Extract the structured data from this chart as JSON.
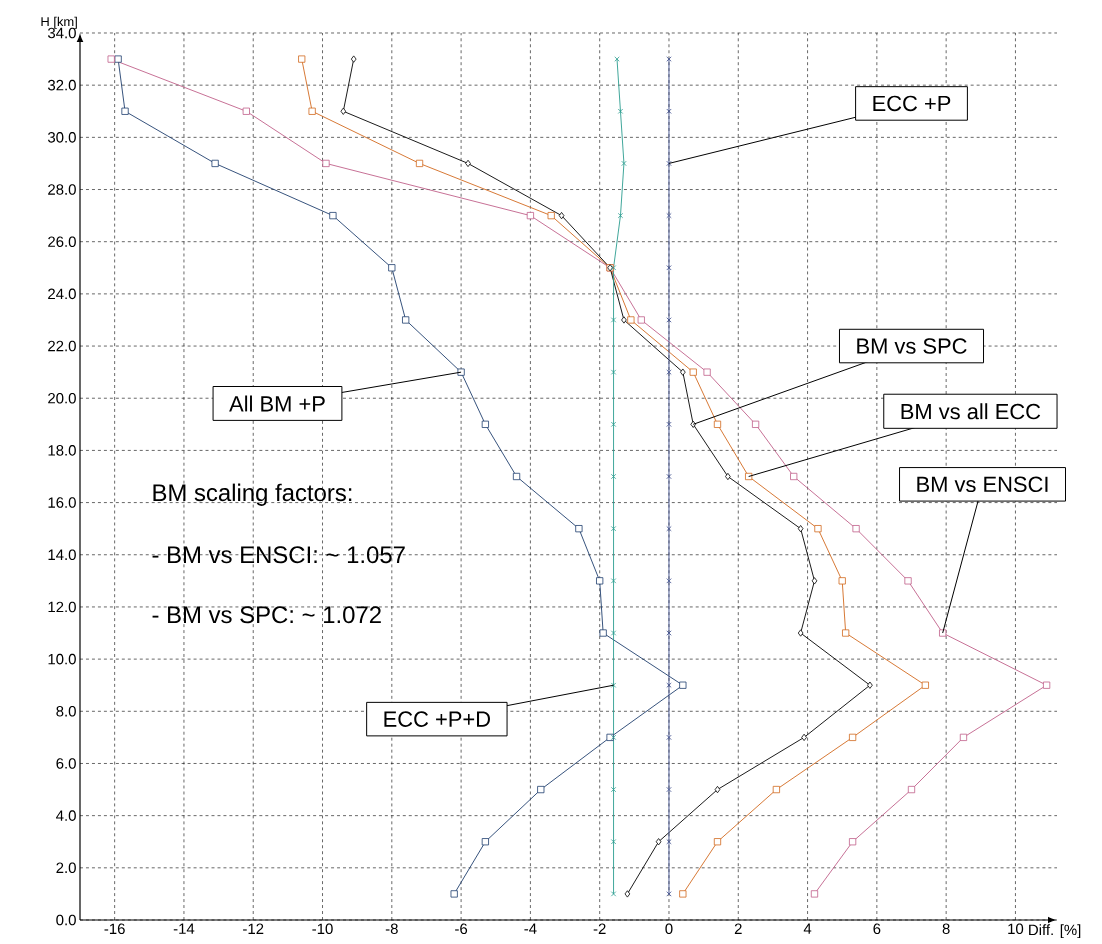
{
  "chart_data": {
    "type": "line",
    "xlabel": "Diff. [%]",
    "ylabel": "H [km]",
    "xlim": [
      -17,
      11.2
    ],
    "ylim": [
      0,
      34
    ],
    "xticks": [
      -16,
      -14,
      -12,
      -10,
      -8,
      -6,
      -4,
      -2,
      0,
      2,
      4,
      6,
      8,
      10
    ],
    "yticks": [
      {
        "value": 0,
        "label": "0.0"
      },
      {
        "value": 2,
        "label": "2.0"
      },
      {
        "value": 4,
        "label": "4.0"
      },
      {
        "value": 6,
        "label": "6.0"
      },
      {
        "value": 8,
        "label": "8.0"
      },
      {
        "value": 10,
        "label": "10.0"
      },
      {
        "value": 12,
        "label": "12.0"
      },
      {
        "value": 14,
        "label": "14.0"
      },
      {
        "value": 16,
        "label": "16.0"
      },
      {
        "value": 18,
        "label": "18.0"
      },
      {
        "value": 20,
        "label": "20.0"
      },
      {
        "value": 22,
        "label": "22.0"
      },
      {
        "value": 24,
        "label": "24.0"
      },
      {
        "value": 26,
        "label": "26.0"
      },
      {
        "value": 28,
        "label": "28.0"
      },
      {
        "value": 30,
        "label": "30.0"
      },
      {
        "value": 32,
        "label": "32.0"
      },
      {
        "value": 34,
        "label": "34.0"
      }
    ],
    "grid": true,
    "series": [
      {
        "name": "All BM +P",
        "color": "#1f3f6e",
        "marker": "square",
        "x": [
          -6.2,
          -5.3,
          -3.7,
          -1.7,
          0.4,
          -1.9,
          -2.0,
          -2.6,
          -4.4,
          -5.3,
          -6.0,
          -7.6,
          -8.0,
          -9.7,
          -13.1,
          -15.7,
          -15.9
        ],
        "values": [
          1,
          3,
          5,
          7,
          9,
          11,
          13,
          15,
          17,
          19,
          21,
          23,
          25,
          27,
          29,
          31,
          33
        ]
      },
      {
        "name": "BM vs ENSCI",
        "color": "#c0608a",
        "marker": "square",
        "x": [
          4.2,
          5.3,
          7.0,
          8.5,
          10.9,
          7.9,
          6.9,
          5.4,
          3.6,
          2.5,
          1.1,
          -0.8,
          -1.7,
          -4.0,
          -9.9,
          -12.2,
          -16.1
        ],
        "values": [
          1,
          3,
          5,
          7,
          9,
          11,
          13,
          15,
          17,
          19,
          21,
          23,
          25,
          27,
          29,
          31,
          33
        ]
      },
      {
        "name": "BM vs all ECC",
        "color": "#d2691e",
        "marker": "square",
        "x": [
          0.4,
          1.4,
          3.1,
          5.3,
          7.4,
          5.1,
          5.0,
          4.3,
          2.3,
          1.4,
          0.7,
          -1.1,
          -1.7,
          -3.4,
          -7.2,
          -10.3,
          -10.6
        ],
        "values": [
          1,
          3,
          5,
          7,
          9,
          11,
          13,
          15,
          17,
          19,
          21,
          23,
          25,
          27,
          29,
          31,
          33
        ]
      },
      {
        "name": "BM vs SPC",
        "color": "#000000",
        "marker": "diamond",
        "x": [
          -1.2,
          -0.3,
          1.4,
          3.9,
          5.8,
          3.8,
          4.2,
          3.8,
          1.7,
          0.7,
          0.4,
          -1.3,
          -1.7,
          -3.1,
          -5.8,
          -9.4,
          -9.1
        ],
        "values": [
          1,
          3,
          5,
          7,
          9,
          11,
          13,
          15,
          17,
          19,
          21,
          23,
          25,
          27,
          29,
          31,
          33
        ]
      },
      {
        "name": "ECC +P+D",
        "color": "#2a9d8f",
        "marker": "cross",
        "x": [
          -1.6,
          -1.6,
          -1.6,
          -1.6,
          -1.6,
          -1.6,
          -1.6,
          -1.6,
          -1.6,
          -1.6,
          -1.6,
          -1.6,
          -1.6,
          -1.4,
          -1.3,
          -1.4,
          -1.5
        ],
        "values": [
          1,
          3,
          5,
          7,
          9,
          11,
          13,
          15,
          17,
          19,
          21,
          23,
          25,
          27,
          29,
          31,
          33
        ]
      },
      {
        "name": "ECC +P",
        "color": "#3a4a8a",
        "marker": "cross",
        "x": [
          0,
          0,
          0,
          0,
          0,
          0,
          0,
          0,
          0,
          0,
          0,
          0,
          0,
          0,
          0,
          0,
          0
        ],
        "values": [
          1,
          3,
          5,
          7,
          9,
          11,
          13,
          15,
          17,
          19,
          21,
          23,
          25,
          27,
          29,
          31,
          33
        ]
      }
    ],
    "annotations": [
      "BM scaling factors:",
      "- BM vs ENSCI: ~ 1.057",
      "- BM vs SPC: ~ 1.072"
    ]
  }
}
